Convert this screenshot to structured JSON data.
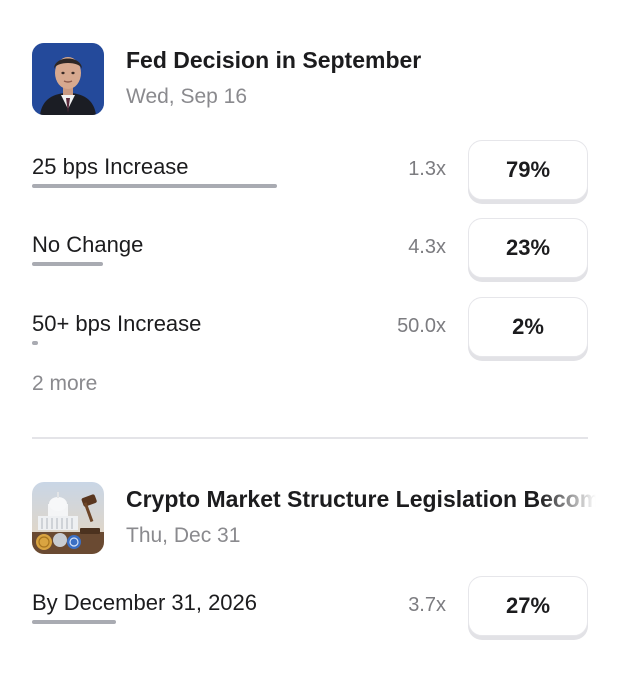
{
  "markets": [
    {
      "title": "Fed Decision in September",
      "date": "Wed, Sep 16",
      "thumbnail_icon": "person-portrait-icon",
      "outcomes": [
        {
          "label": "25 bps Increase",
          "multiplier": "1.3x",
          "probability": "79%",
          "bar_fraction": 0.79
        },
        {
          "label": "No Change",
          "multiplier": "4.3x",
          "probability": "23%",
          "bar_fraction": 0.23
        },
        {
          "label": "50+ bps Increase",
          "multiplier": "50.0x",
          "probability": "2%",
          "bar_fraction": 0.02
        }
      ],
      "more_label": "2 more"
    },
    {
      "title": "Crypto Market Structure Legislation Becomes Law",
      "date": "Thu, Dec 31",
      "thumbnail_icon": "capitol-crypto-icon",
      "outcomes": [
        {
          "label": "By December 31, 2026",
          "multiplier": "3.7x",
          "probability": "27%",
          "bar_fraction": 0.27
        }
      ]
    }
  ],
  "colors": {
    "text_primary": "#1c1c1e",
    "text_secondary": "#8a8a8e",
    "bar": "#a9abb2",
    "button_border": "#e6e6ea"
  }
}
